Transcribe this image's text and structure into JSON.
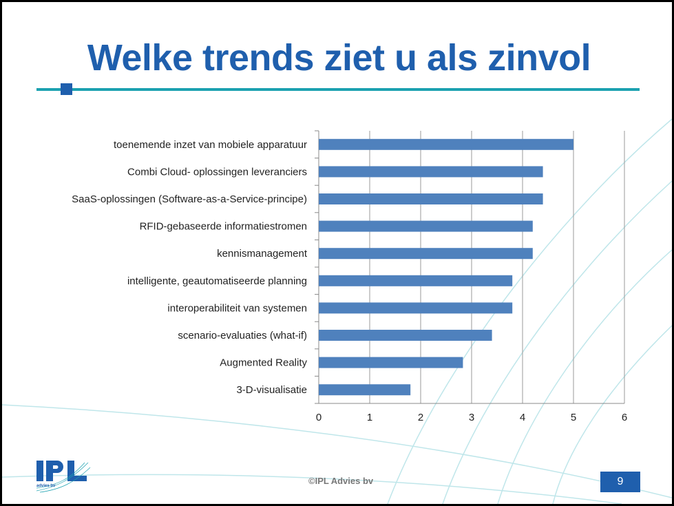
{
  "slide": {
    "title": "Welke trends ziet u als zinvol",
    "footer": "©IPL Advies bv",
    "page_number": "9",
    "logo_text": "IPL advies bv"
  },
  "colors": {
    "title": "#1F5FAD",
    "rule": "#1BA1B0",
    "bar": "#4F81BD"
  },
  "chart_data": {
    "type": "bar",
    "orientation": "horizontal",
    "categories": [
      "toenemende inzet van mobiele apparatuur",
      "Combi Cloud- oplossingen leveranciers",
      "SaaS-oplossingen (Software-as-a-Service-principe)",
      "RFID-gebaseerde informatiestromen",
      "kennismanagement",
      "intelligente, geautomatiseerde planning",
      "interoperabiliteit van systemen",
      "scenario-evaluaties (what-if)",
      "Augmented Reality",
      "3-D-visualisatie"
    ],
    "values": [
      5.0,
      4.4,
      4.4,
      4.2,
      4.2,
      3.8,
      3.8,
      3.4,
      2.83,
      1.8
    ],
    "xlim": [
      0,
      6
    ],
    "xticks": [
      "0",
      "1",
      "2",
      "3",
      "4",
      "5",
      "6"
    ],
    "grid": true,
    "title": "",
    "xlabel": "",
    "ylabel": ""
  }
}
